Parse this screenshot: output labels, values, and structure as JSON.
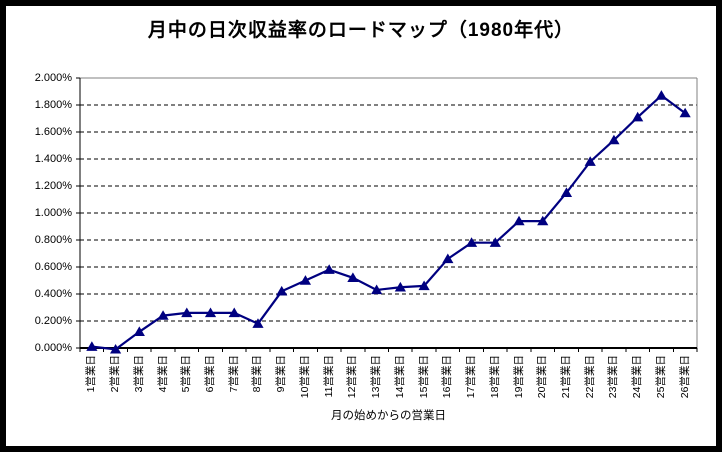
{
  "chart_data": {
    "type": "line",
    "title": "月中の日次収益率のロードマップ（1980年代）",
    "xlabel": "月の始めからの営業日",
    "ylabel": "",
    "categories": [
      "1営業日",
      "2営業日",
      "3営業日",
      "4営業日",
      "5営業日",
      "6営業日",
      "7営業日",
      "8営業日",
      "9営業日",
      "10営業日",
      "11営業日",
      "12営業日",
      "13営業日",
      "14営業日",
      "15営業日",
      "16営業日",
      "17営業日",
      "18営業日",
      "19営業日",
      "20営業日",
      "21営業日",
      "22営業日",
      "23営業日",
      "24営業日",
      "25営業日",
      "26営業日"
    ],
    "values": [
      0.01,
      -0.01,
      0.12,
      0.24,
      0.26,
      0.26,
      0.26,
      0.18,
      0.42,
      0.5,
      0.58,
      0.52,
      0.43,
      0.45,
      0.46,
      0.66,
      0.78,
      0.78,
      0.94,
      0.94,
      1.15,
      1.38,
      1.54,
      1.71,
      1.87,
      1.74
    ],
    "value_unit": "%",
    "ylim": [
      0,
      2.0
    ],
    "y_tick_step": 0.2,
    "y_tick_labels": [
      "0.000%",
      "0.200%",
      "0.400%",
      "0.600%",
      "0.800%",
      "1.000%",
      "1.200%",
      "1.400%",
      "1.600%",
      "1.800%",
      "2.000%"
    ],
    "grid": "horizontal-dashed",
    "legend": "none",
    "marker": "filled-triangle",
    "colors": {
      "line": "#000080",
      "marker": "#000080",
      "gridline": "#000000",
      "plot_border": "#808080",
      "frame_border": "#000000",
      "background": "#ffffff"
    }
  }
}
